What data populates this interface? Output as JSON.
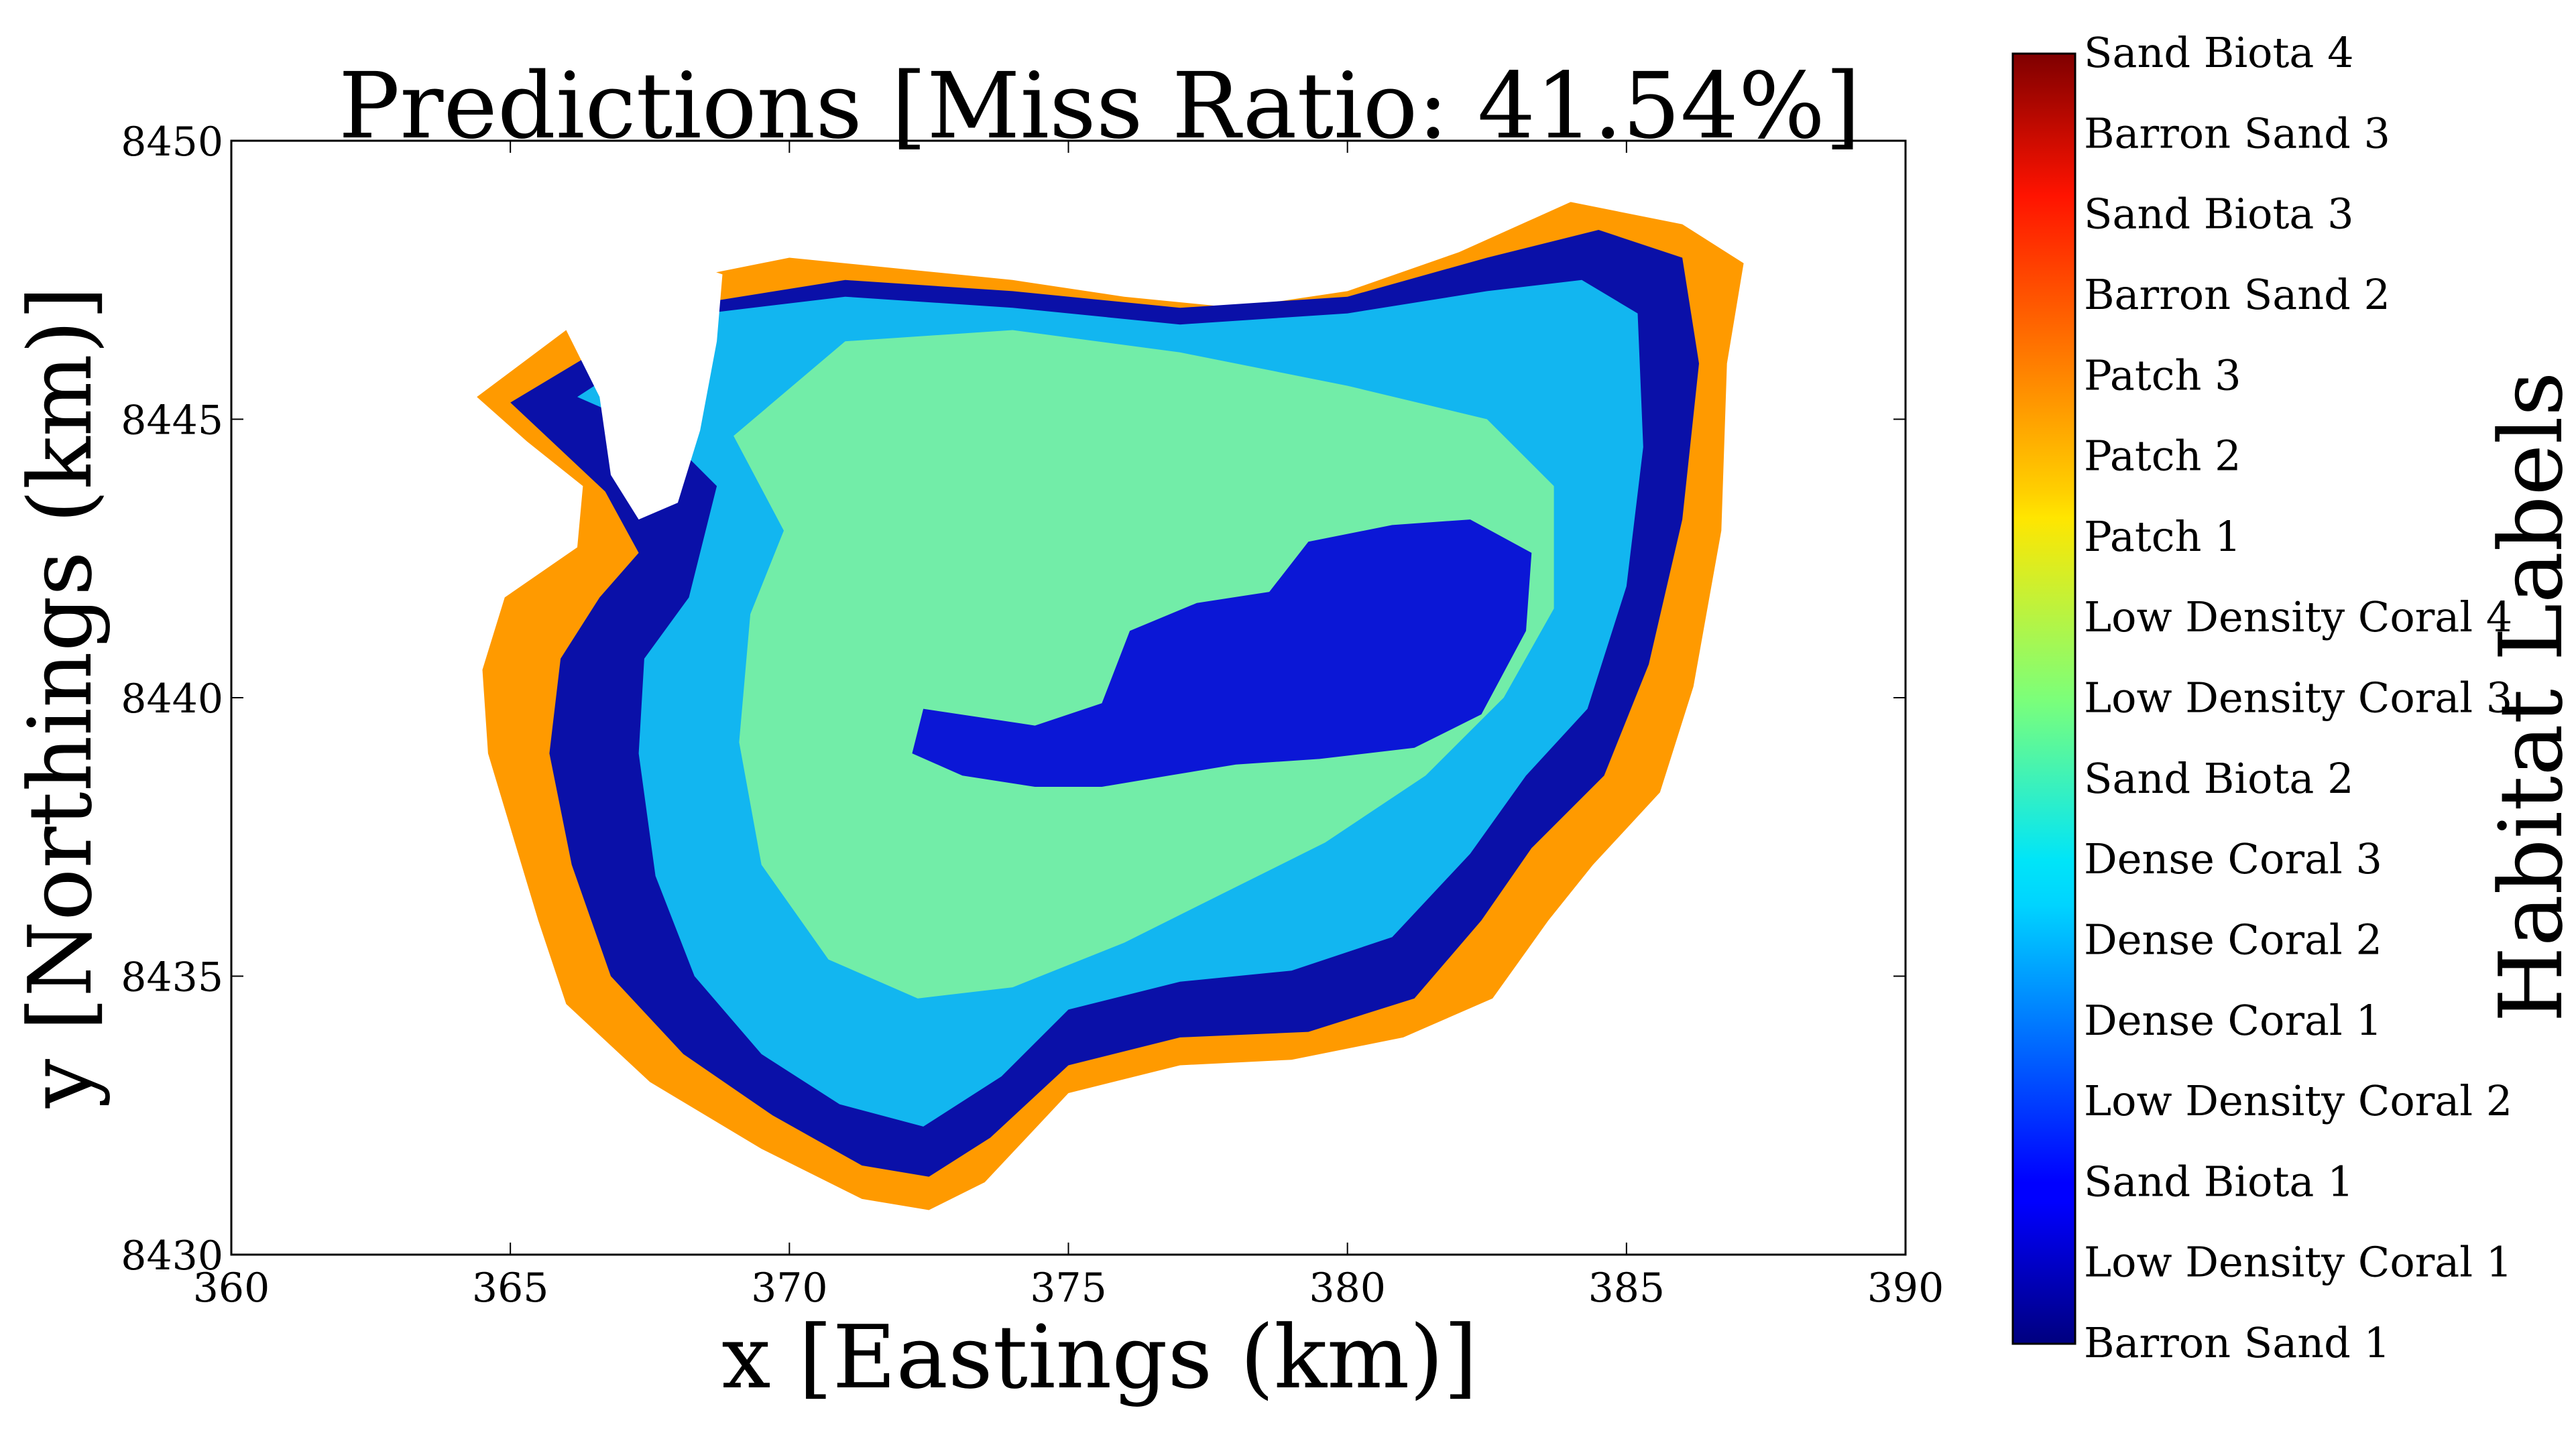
{
  "chart_data": {
    "type": "scatter",
    "title": "Predictions [Miss Ratio: 41.54%]",
    "xlabel": "x [Eastings (km)]",
    "ylabel": "y [Northings (km)]",
    "xlim": [
      360,
      390
    ],
    "ylim": [
      8430,
      8450
    ],
    "xticks": [
      "360",
      "365",
      "370",
      "375",
      "380",
      "385",
      "390"
    ],
    "yticks": [
      "8430",
      "8435",
      "8440",
      "8445",
      "8450"
    ],
    "grid": false,
    "colorbar": {
      "title": "Habitat Labels",
      "labels": [
        "Barron Sand 1",
        "Low Density Coral 1",
        "Sand Biota 1",
        "Low Density Coral 2",
        "Dense Coral 1",
        "Dense Coral 2",
        "Dense Coral 3",
        "Sand Biota 2",
        "Low Density Coral 3",
        "Low Density Coral 4",
        "Patch 1",
        "Patch 2",
        "Patch 3",
        "Barron Sand 2",
        "Sand Biota 3",
        "Barron Sand 3",
        "Sand Biota 4"
      ],
      "colormap": "jet"
    },
    "regions": [
      {
        "name": "outer",
        "color": "#ff9a00",
        "points": [
          [
            364.4,
            8445.4
          ],
          [
            366,
            8446.6
          ],
          [
            368,
            8447.5
          ],
          [
            370,
            8447.9
          ],
          [
            372,
            8447.7
          ],
          [
            374,
            8447.5
          ],
          [
            376,
            8447.2
          ],
          [
            378,
            8447.0
          ],
          [
            380,
            8447.3
          ],
          [
            382,
            8448.0
          ],
          [
            384,
            8448.9
          ],
          [
            386,
            8448.5
          ],
          [
            387.1,
            8447.8
          ],
          [
            386.8,
            8446
          ],
          [
            386.7,
            8443
          ],
          [
            386.2,
            8440.2
          ],
          [
            385.6,
            8438.3
          ],
          [
            384.4,
            8437
          ],
          [
            383.6,
            8436
          ],
          [
            382.6,
            8434.6
          ],
          [
            381,
            8433.9
          ],
          [
            379,
            8433.5
          ],
          [
            377,
            8433.4
          ],
          [
            375,
            8432.9
          ],
          [
            373.5,
            8431.3
          ],
          [
            372.5,
            8430.8
          ],
          [
            371.3,
            8431
          ],
          [
            369.5,
            8431.9
          ],
          [
            367.5,
            8433.1
          ],
          [
            366,
            8434.5
          ],
          [
            365.5,
            8436
          ],
          [
            364.6,
            8439
          ],
          [
            364.5,
            8440.5
          ],
          [
            364.9,
            8441.8
          ],
          [
            366.2,
            8442.7
          ],
          [
            366.3,
            8443.8
          ],
          [
            365.3,
            8444.6
          ]
        ],
        "opacity": 1
      },
      {
        "name": "ring",
        "color": "#0a10a8",
        "points": [
          [
            365,
            8445.3
          ],
          [
            366.5,
            8446.2
          ],
          [
            368.5,
            8447.1
          ],
          [
            371,
            8447.5
          ],
          [
            374,
            8447.3
          ],
          [
            377,
            8447.0
          ],
          [
            380,
            8447.2
          ],
          [
            382.5,
            8447.9
          ],
          [
            384.5,
            8448.4
          ],
          [
            386,
            8447.9
          ],
          [
            386.3,
            8446
          ],
          [
            386,
            8443.2
          ],
          [
            385.4,
            8440.6
          ],
          [
            384.6,
            8438.6
          ],
          [
            383.3,
            8437.3
          ],
          [
            382.4,
            8436
          ],
          [
            381.2,
            8434.6
          ],
          [
            379.3,
            8434.0
          ],
          [
            377,
            8433.9
          ],
          [
            375,
            8433.4
          ],
          [
            373.6,
            8432.1
          ],
          [
            372.5,
            8431.4
          ],
          [
            371.3,
            8431.6
          ],
          [
            369.7,
            8432.5
          ],
          [
            368.1,
            8433.6
          ],
          [
            366.8,
            8435
          ],
          [
            366.1,
            8437
          ],
          [
            365.7,
            8439
          ],
          [
            365.9,
            8440.7
          ],
          [
            366.6,
            8441.8
          ],
          [
            367.3,
            8442.6
          ],
          [
            366.7,
            8443.7
          ]
        ],
        "opacity": 1
      },
      {
        "name": "middle",
        "color": "#12b6f0",
        "points": [
          [
            366.2,
            8445.4
          ],
          [
            368.5,
            8446.9
          ],
          [
            371,
            8447.2
          ],
          [
            374,
            8447.0
          ],
          [
            377,
            8446.7
          ],
          [
            380,
            8446.9
          ],
          [
            382.5,
            8447.3
          ],
          [
            384.2,
            8447.5
          ],
          [
            385.2,
            8446.9
          ],
          [
            385.3,
            8444.5
          ],
          [
            385,
            8442
          ],
          [
            384.3,
            8439.8
          ],
          [
            383.2,
            8438.6
          ],
          [
            382.2,
            8437.2
          ],
          [
            380.8,
            8435.7
          ],
          [
            379,
            8435.1
          ],
          [
            377,
            8434.9
          ],
          [
            375,
            8434.4
          ],
          [
            373.8,
            8433.2
          ],
          [
            372.4,
            8432.3
          ],
          [
            370.9,
            8432.7
          ],
          [
            369.5,
            8433.6
          ],
          [
            368.3,
            8435
          ],
          [
            367.6,
            8436.8
          ],
          [
            367.3,
            8439
          ],
          [
            367.4,
            8440.7
          ],
          [
            368.2,
            8441.8
          ],
          [
            368.7,
            8443.8
          ],
          [
            367.8,
            8444.7
          ]
        ],
        "opacity": 1
      },
      {
        "name": "core",
        "color": "#7df3a0",
        "points": [
          [
            369,
            8444.7
          ],
          [
            371,
            8446.4
          ],
          [
            374,
            8446.6
          ],
          [
            377,
            8446.2
          ],
          [
            380,
            8445.6
          ],
          [
            382.5,
            8445
          ],
          [
            383.7,
            8443.8
          ],
          [
            383.7,
            8441.6
          ],
          [
            382.8,
            8440
          ],
          [
            381.4,
            8438.6
          ],
          [
            379.6,
            8437.4
          ],
          [
            377.8,
            8436.5
          ],
          [
            376,
            8435.6
          ],
          [
            374,
            8434.8
          ],
          [
            372.3,
            8434.6
          ],
          [
            370.7,
            8435.3
          ],
          [
            369.5,
            8437
          ],
          [
            369.1,
            8439.2
          ],
          [
            369.3,
            8441.5
          ],
          [
            369.9,
            8443
          ]
        ],
        "opacity": 0.9
      },
      {
        "name": "deep",
        "color": "#0b17d6",
        "points": [
          [
            372.4,
            8439.8
          ],
          [
            374.4,
            8439.5
          ],
          [
            375.6,
            8439.9
          ],
          [
            376.1,
            8441.2
          ],
          [
            377.3,
            8441.7
          ],
          [
            378.6,
            8441.9
          ],
          [
            379.3,
            8442.8
          ],
          [
            380.8,
            8443.1
          ],
          [
            382.2,
            8443.2
          ],
          [
            383.3,
            8442.6
          ],
          [
            383.2,
            8441.2
          ],
          [
            382.4,
            8439.7
          ],
          [
            381.2,
            8439.1
          ],
          [
            379.5,
            8438.9
          ],
          [
            378,
            8438.8
          ],
          [
            376.8,
            8438.6
          ],
          [
            375.6,
            8438.4
          ],
          [
            374.4,
            8438.4
          ],
          [
            373.1,
            8438.6
          ],
          [
            372.2,
            8439
          ]
        ],
        "opacity": 1
      },
      {
        "name": "lagoon",
        "color": "#ffffff",
        "points": [
          [
            366,
            8446.6
          ],
          [
            366.8,
            8447.5
          ],
          [
            367.9,
            8447.9
          ],
          [
            368.8,
            8447.6
          ],
          [
            368.7,
            8446.4
          ],
          [
            368.4,
            8444.8
          ],
          [
            368,
            8443.5
          ],
          [
            367.3,
            8443.2
          ],
          [
            366.8,
            8444
          ],
          [
            366.6,
            8445.4
          ]
        ],
        "opacity": 1
      }
    ]
  }
}
